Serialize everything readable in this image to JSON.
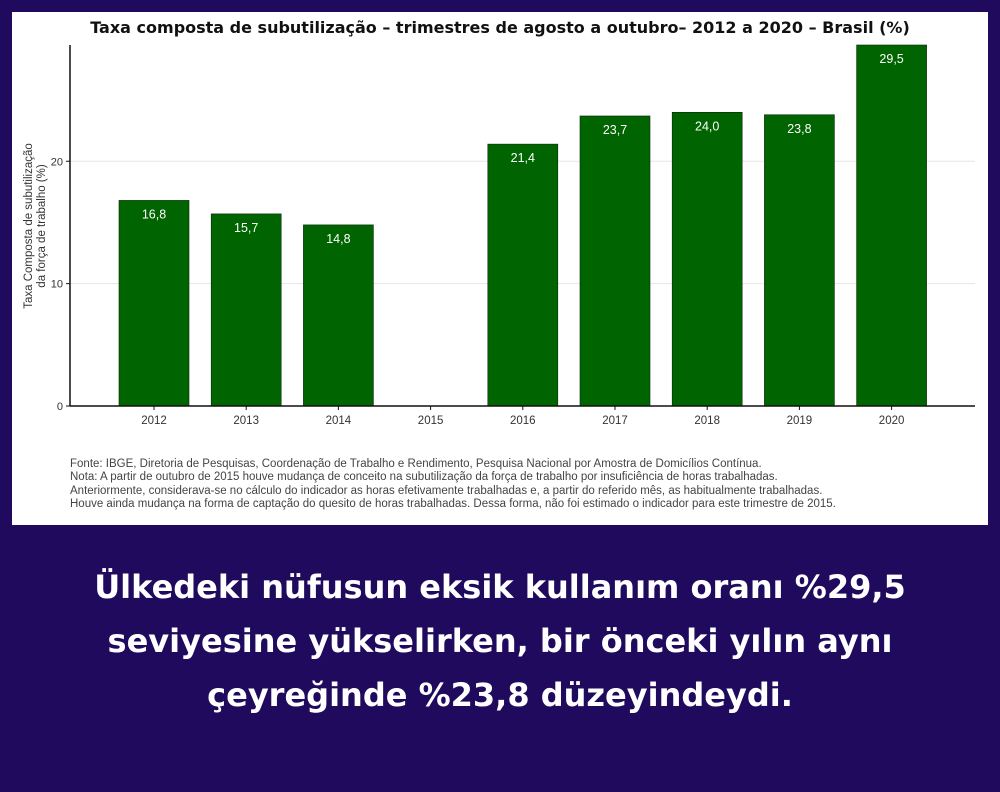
{
  "chart_data": {
    "type": "bar",
    "title": "Taxa composta de subutilização – trimestres de agosto a outubro– 2012 a 2020 – Brasil (%)",
    "ylabel_lines": [
      "Taxa Composta de subutilização",
      "da força de trabalho (%)"
    ],
    "xlabel": "",
    "categories": [
      "2012",
      "2013",
      "2014",
      "2015",
      "2016",
      "2017",
      "2018",
      "2019",
      "2020"
    ],
    "values": [
      16.8,
      15.7,
      14.8,
      null,
      21.4,
      23.7,
      24.0,
      23.8,
      29.5
    ],
    "value_labels": [
      "16,8",
      "15,7",
      "14,8",
      "",
      "21,4",
      "23,7",
      "24,0",
      "23,8",
      "29,5"
    ],
    "yticks": [
      0,
      10,
      20
    ],
    "ylim": [
      0,
      29.5
    ],
    "grid": true,
    "bar_color": "#006400"
  },
  "source_lines": [
    "Fonte: IBGE, Diretoria de Pesquisas, Coordenação de Trabalho e Rendimento, Pesquisa Nacional por Amostra de Domicílios Contínua.",
    "Nota: A partir de outubro de 2015 houve mudança de conceito na subutilização da força de trabalho por insuficiência de horas trabalhadas.",
    "Anteriormente, considerava-se no cálculo do indicador as horas efetivamente trabalhadas e, a partir do referido mês, as habitualmente trabalhadas.",
    "Houve ainda mudança na forma de captação do quesito de horas trabalhadas. Dessa forma, não foi estimado o indicador para este trimestre de 2015."
  ],
  "caption_lines": [
    "Ülkedeki nüfusun eksik kullanım oranı %29,5",
    "seviyesine yükselirken, bir önceki yılın aynı",
    "çeyreğinde %23,8 düzeyindeydi."
  ],
  "colors": {
    "background": "#1f0a5e",
    "card": "#ffffff",
    "bar": "#006400",
    "caption_text": "#ffffff"
  }
}
